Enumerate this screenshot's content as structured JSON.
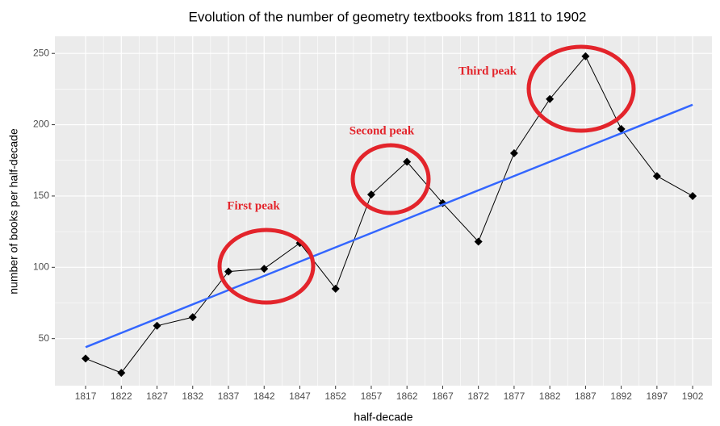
{
  "chart_data": {
    "type": "line",
    "title": "Evolution of the number of geometry textbooks from 1811 to 1902",
    "xlabel": "half-decade",
    "ylabel": "number of books per half-decade",
    "x": [
      1817,
      1822,
      1827,
      1832,
      1837,
      1842,
      1847,
      1852,
      1857,
      1862,
      1867,
      1872,
      1877,
      1882,
      1887,
      1892,
      1897,
      1902
    ],
    "series": [
      {
        "color": "#000000",
        "values": [
          36,
          26,
          59,
          65,
          97,
          99,
          117,
          85,
          151,
          174,
          145,
          118,
          180,
          218,
          248,
          197,
          164,
          150
        ]
      }
    ],
    "trend": {
      "x": [
        1817,
        1902
      ],
      "values": [
        44,
        214
      ],
      "color": "#3366ff"
    },
    "annotations": [
      {
        "text": "First peak"
      },
      {
        "text": "Second peak"
      },
      {
        "text": "Third peak"
      }
    ],
    "xlim": [
      1812.7,
      1904.7
    ],
    "xticks": [
      1817,
      1822,
      1827,
      1832,
      1837,
      1842,
      1847,
      1852,
      1857,
      1862,
      1867,
      1872,
      1877,
      1882,
      1887,
      1892,
      1897,
      1902
    ],
    "ylim": [
      17,
      262
    ],
    "yticks": [
      50,
      100,
      150,
      200,
      250
    ],
    "grid": true
  }
}
